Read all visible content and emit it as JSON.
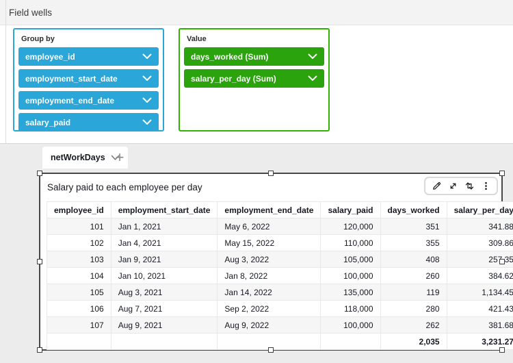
{
  "field_wells": {
    "title": "Field wells",
    "group_by": {
      "label": "Group by",
      "pills": [
        "employee_id",
        "employment_start_date",
        "employment_end_date",
        "salary_paid"
      ]
    },
    "value": {
      "label": "Value",
      "pills": [
        "days_worked (Sum)",
        "salary_per_day (Sum)"
      ]
    }
  },
  "colors": {
    "dimension_blue": "#2ba6d9",
    "measure_green": "#2aa30d",
    "selection_border": "#474747"
  },
  "sheet": {
    "tab_label": "netWorkDays",
    "add_tab_label": "+"
  },
  "visual": {
    "title": "Salary paid to each employee per day",
    "toolbar_icons": [
      "pencil-edit",
      "maximize",
      "swap-vertical",
      "kebab-menu"
    ],
    "table": {
      "columns": [
        "employee_id",
        "employment_start_date",
        "employment_end_date",
        "salary_paid",
        "days_worked",
        "salary_per_day"
      ],
      "rows": [
        [
          "101",
          "Jan 1, 2021",
          "May 6, 2022",
          "120,000",
          "351",
          "341.88"
        ],
        [
          "102",
          "Jan 4, 2021",
          "May 15, 2022",
          "110,000",
          "355",
          "309.86"
        ],
        [
          "103",
          "Jan 9, 2021",
          "Aug 3, 2022",
          "105,000",
          "408",
          "257.35"
        ],
        [
          "104",
          "Jan 10, 2021",
          "Jan 8, 2022",
          "100,000",
          "260",
          "384.62"
        ],
        [
          "105",
          "Aug 3, 2021",
          "Jan 14, 2022",
          "135,000",
          "119",
          "1,134.45"
        ],
        [
          "106",
          "Aug 7, 2021",
          "Sep 2, 2022",
          "118,000",
          "280",
          "421.43"
        ],
        [
          "107",
          "Aug 9, 2021",
          "Aug 9, 2022",
          "100,000",
          "262",
          "381.68"
        ]
      ],
      "totals": [
        "",
        "",
        "",
        "",
        "2,035",
        "3,231.27"
      ]
    }
  }
}
